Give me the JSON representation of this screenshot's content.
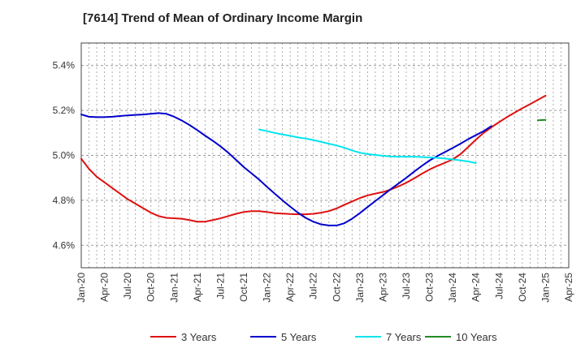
{
  "chart_data": {
    "type": "line",
    "title": "[7614]  Trend of Mean of Ordinary Income Margin",
    "xlabel": "",
    "ylabel": "",
    "x_tick_labels": [
      "Jan-20",
      "Apr-20",
      "Jul-20",
      "Oct-20",
      "Jan-21",
      "Apr-21",
      "Jul-21",
      "Oct-21",
      "Jan-22",
      "Apr-22",
      "Jul-22",
      "Oct-22",
      "Jan-23",
      "Apr-23",
      "Jul-23",
      "Oct-23",
      "Jan-24",
      "Apr-24",
      "Jul-24",
      "Oct-24",
      "Jan-25",
      "Apr-25"
    ],
    "y_tick_labels": [
      "4.6%",
      "4.8%",
      "5.0%",
      "5.2%",
      "5.4%"
    ],
    "y_ticks": [
      4.6,
      4.8,
      5.0,
      5.2,
      5.4
    ],
    "ylim": [
      4.5,
      5.5
    ],
    "grid": "horizontal dashed",
    "legend_position": "bottom",
    "series": [
      {
        "name": "3 Years",
        "color": "#dd1111",
        "start_index": 0,
        "values": [
          4.985,
          4.94,
          4.905,
          4.88,
          4.855,
          4.83,
          4.805,
          4.785,
          4.765,
          4.745,
          4.73,
          4.722,
          4.72,
          4.718,
          4.712,
          4.705,
          4.705,
          4.712,
          4.72,
          4.73,
          4.74,
          4.748,
          4.752,
          4.752,
          4.748,
          4.743,
          4.741,
          4.739,
          4.738,
          4.738,
          4.74,
          4.745,
          4.752,
          4.764,
          4.78,
          4.795,
          4.81,
          4.822,
          4.83,
          4.837,
          4.848,
          4.862,
          4.878,
          4.897,
          4.918,
          4.937,
          4.953,
          4.967,
          4.982,
          5.005,
          5.037,
          5.07,
          5.1,
          5.125,
          5.148,
          5.17,
          5.19,
          5.21,
          5.228,
          5.247,
          5.266
        ]
      },
      {
        "name": "5 Years",
        "color": "#0000cc",
        "start_index": 0,
        "values": [
          5.182,
          5.172,
          5.17,
          5.17,
          5.172,
          5.175,
          5.178,
          5.18,
          5.182,
          5.185,
          5.188,
          5.185,
          5.172,
          5.155,
          5.135,
          5.112,
          5.088,
          5.065,
          5.04,
          5.012,
          4.98,
          4.948,
          4.92,
          4.892,
          4.86,
          4.83,
          4.8,
          4.772,
          4.745,
          4.722,
          4.705,
          4.693,
          4.688,
          4.688,
          4.698,
          4.718,
          4.743,
          4.77,
          4.797,
          4.823,
          4.85,
          4.875,
          4.9,
          4.927,
          4.953,
          4.977,
          4.997,
          5.015,
          5.033,
          5.052,
          5.072,
          5.09,
          5.108,
          5.13
        ]
      },
      {
        "name": "7 Years",
        "color": "#00e5ee",
        "start_index": 23,
        "values": [
          5.115,
          5.108,
          5.1,
          5.093,
          5.087,
          5.08,
          5.075,
          5.068,
          5.06,
          5.052,
          5.044,
          5.034,
          5.022,
          5.012,
          5.006,
          5.002,
          4.998,
          4.995,
          4.994,
          4.994,
          4.994,
          4.993,
          4.991,
          4.989,
          4.986,
          4.982,
          4.978,
          4.973,
          4.966
        ]
      },
      {
        "name": "10 Years",
        "color": "#228b22",
        "start_index": 59,
        "values": [
          5.156,
          5.158
        ]
      }
    ]
  }
}
